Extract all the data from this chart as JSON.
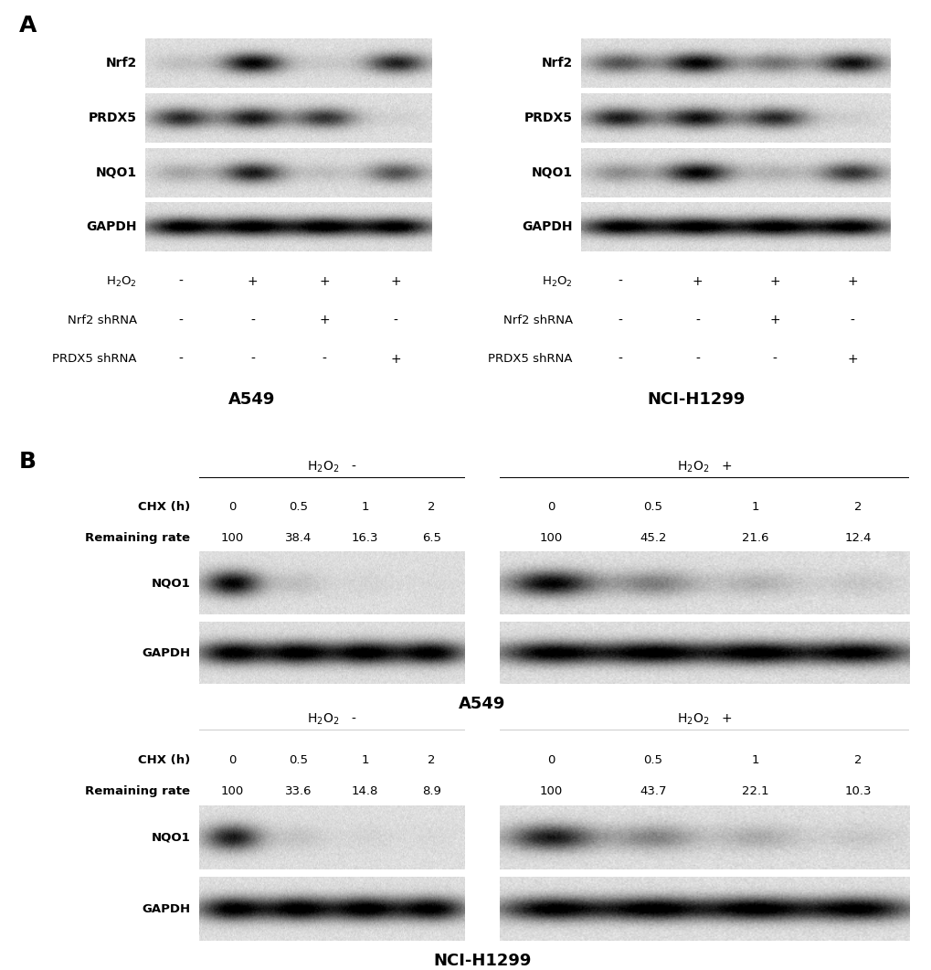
{
  "bg_color": "#ffffff",
  "panel_A": {
    "left_panel": {
      "title": "A549",
      "blots": [
        "Nrf2",
        "PRDX5",
        "NQO1",
        "GAPDH"
      ],
      "conditions": {
        "H2O2": [
          "-",
          "+",
          "+",
          "+"
        ],
        "Nrf2 shRNA": [
          "-",
          "-",
          "+",
          "-"
        ],
        "PRDX5 shRNA": [
          "-",
          "-",
          "-",
          "+"
        ]
      },
      "band_intensities": {
        "Nrf2": [
          0.12,
          0.88,
          0.08,
          0.75
        ],
        "PRDX5": [
          0.72,
          0.78,
          0.68,
          0.05
        ],
        "NQO1": [
          0.22,
          0.78,
          0.12,
          0.55
        ],
        "GAPDH": [
          0.92,
          0.92,
          0.92,
          0.92
        ]
      }
    },
    "right_panel": {
      "title": "NCI-H1299",
      "blots": [
        "Nrf2",
        "PRDX5",
        "NQO1",
        "GAPDH"
      ],
      "conditions": {
        "H2O2": [
          "-",
          "+",
          "+",
          "+"
        ],
        "Nrf2 shRNA": [
          "-",
          "-",
          "+",
          "-"
        ],
        "PRDX5 shRNA": [
          "-",
          "-",
          "-",
          "+"
        ]
      },
      "band_intensities": {
        "Nrf2": [
          0.55,
          0.88,
          0.42,
          0.82
        ],
        "PRDX5": [
          0.78,
          0.82,
          0.72,
          0.06
        ],
        "NQO1": [
          0.32,
          0.88,
          0.18,
          0.68
        ],
        "GAPDH": [
          0.92,
          0.92,
          0.92,
          0.92
        ]
      }
    }
  },
  "panel_B": {
    "A549": {
      "minus_H2O2": {
        "CHX_h": [
          "0",
          "0.5",
          "1",
          "2"
        ],
        "remaining_rate": [
          "100",
          "38.4",
          "16.3",
          "6.5"
        ],
        "NQO1_intensity": [
          0.88,
          0.12,
          0.04,
          0.02
        ],
        "GAPDH_intensity": [
          0.92,
          0.92,
          0.92,
          0.92
        ]
      },
      "plus_H2O2": {
        "CHX_h": [
          "0",
          "0.5",
          "1",
          "2"
        ],
        "remaining_rate": [
          "100",
          "45.2",
          "21.6",
          "12.4"
        ],
        "NQO1_intensity": [
          0.88,
          0.38,
          0.18,
          0.09
        ],
        "GAPDH_intensity": [
          0.92,
          0.92,
          0.92,
          0.92
        ]
      }
    },
    "NCI-H1299": {
      "minus_H2O2": {
        "CHX_h": [
          "0",
          "0.5",
          "1",
          "2"
        ],
        "remaining_rate": [
          "100",
          "33.6",
          "14.8",
          "8.9"
        ],
        "NQO1_intensity": [
          0.78,
          0.1,
          0.04,
          0.02
        ],
        "GAPDH_intensity": [
          0.92,
          0.92,
          0.92,
          0.92
        ]
      },
      "plus_H2O2": {
        "CHX_h": [
          "0",
          "0.5",
          "1",
          "2"
        ],
        "remaining_rate": [
          "100",
          "43.7",
          "22.1",
          "10.3"
        ],
        "NQO1_intensity": [
          0.78,
          0.36,
          0.2,
          0.09
        ],
        "GAPDH_intensity": [
          0.92,
          0.92,
          0.92,
          0.92
        ]
      }
    }
  }
}
